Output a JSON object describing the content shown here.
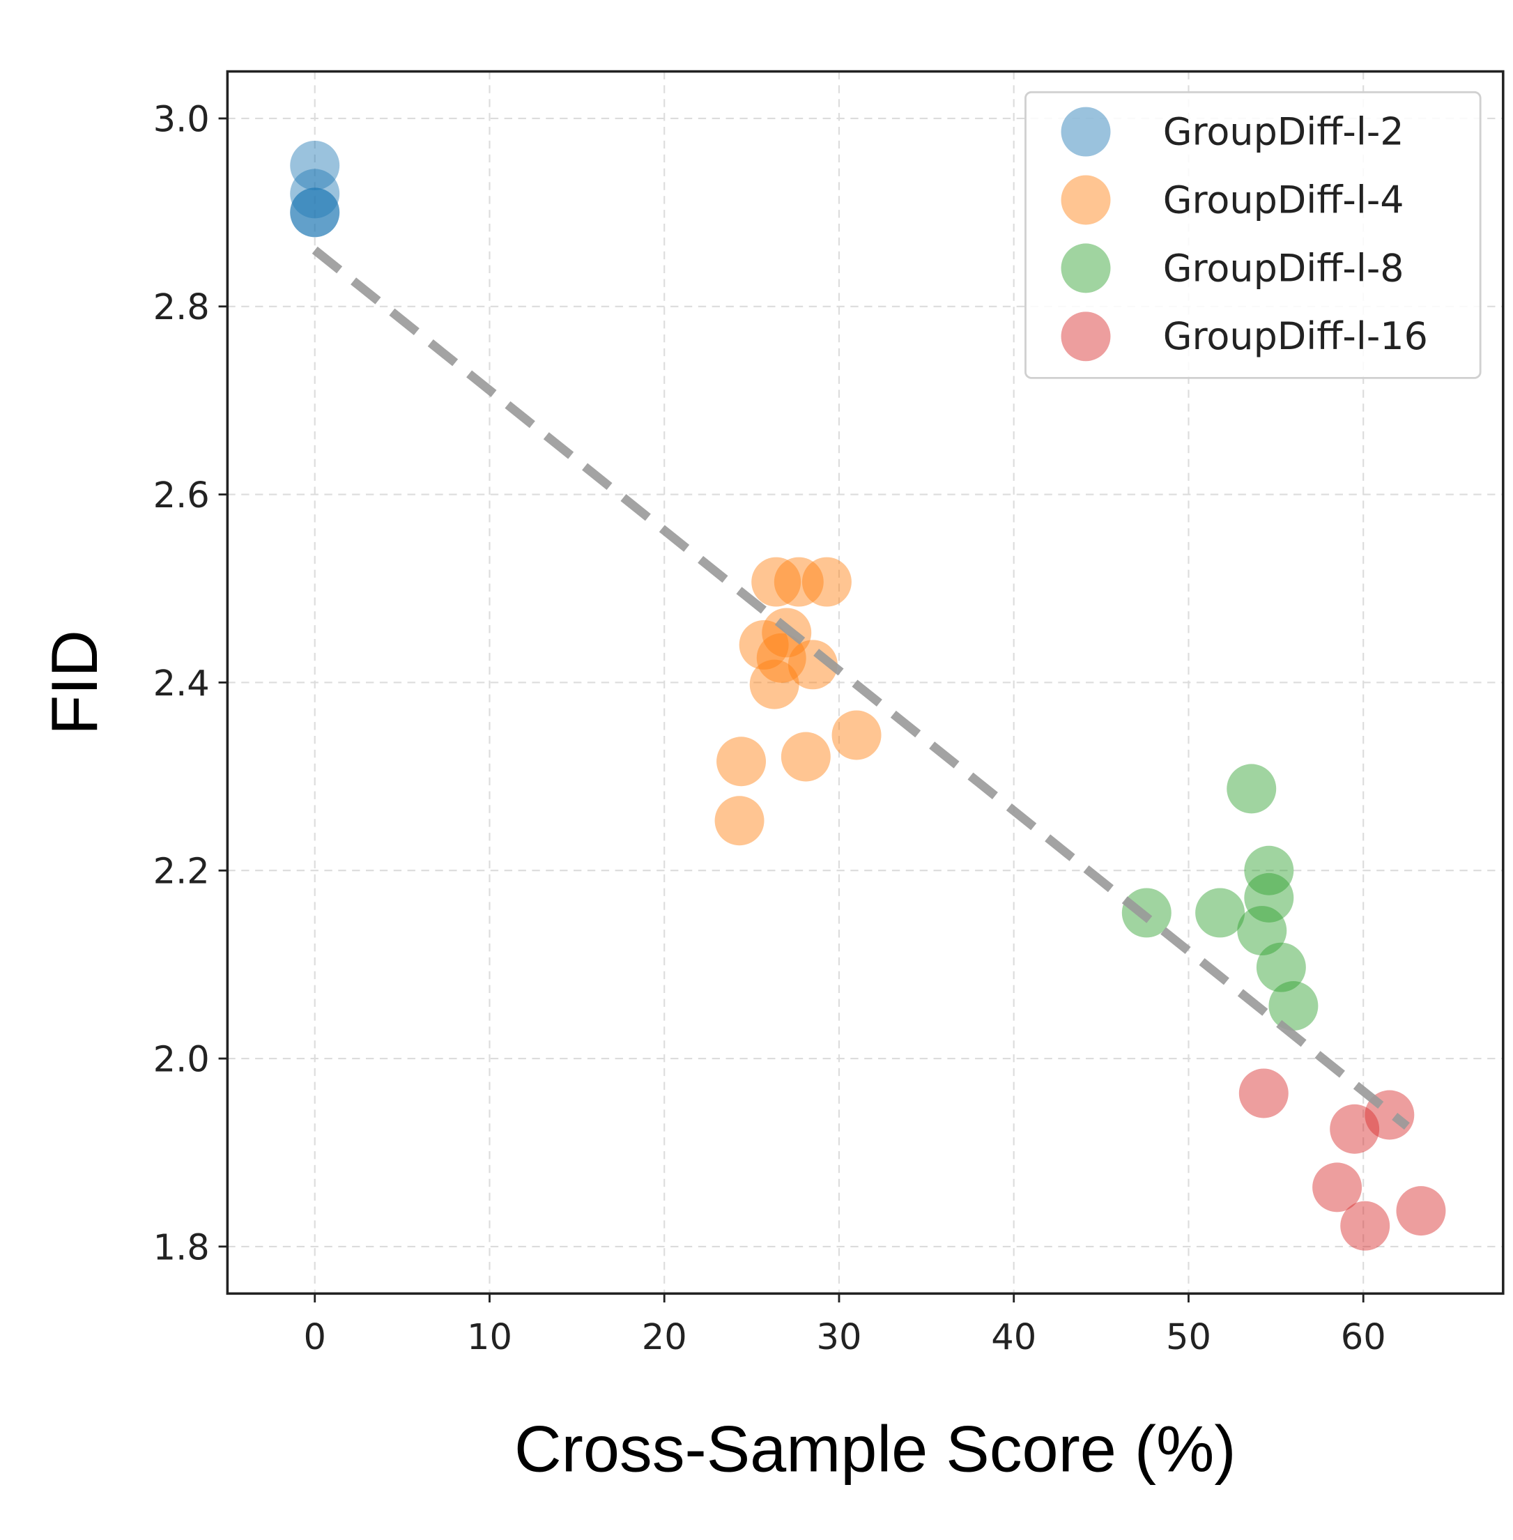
{
  "chart_data": {
    "type": "scatter",
    "x_label": "Cross-Sample Score (%)",
    "y_label": "FID",
    "xlim": [
      -5,
      68
    ],
    "ylim": [
      1.75,
      3.05
    ],
    "xticks": [
      0,
      10,
      20,
      30,
      40,
      50,
      60
    ],
    "yticks": [
      {
        "value": 1.8,
        "label": "1.8"
      },
      {
        "value": 2.0,
        "label": "2.0"
      },
      {
        "value": 2.2,
        "label": "2.2"
      },
      {
        "value": 2.4,
        "label": "2.4"
      },
      {
        "value": 2.6,
        "label": "2.6"
      },
      {
        "value": 2.8,
        "label": "2.8"
      },
      {
        "value": 3.0,
        "label": "3.0"
      }
    ],
    "grid": true,
    "legend": "upper right",
    "series": [
      {
        "name": "GroupDiff-l-2",
        "color": "#1f77b4",
        "x": [
          0,
          0,
          0,
          0
        ],
        "values": [
          2.95,
          2.92,
          2.9,
          2.9
        ]
      },
      {
        "name": "GroupDiff-l-4",
        "color": "#ff7f0e",
        "x": [
          26.4,
          27.7,
          29.3,
          25.7,
          27.0,
          26.7,
          28.5,
          26.3,
          31.0,
          24.4,
          28.1,
          24.3
        ],
        "values": [
          2.507,
          2.507,
          2.507,
          2.44,
          2.453,
          2.426,
          2.419,
          2.398,
          2.344,
          2.316,
          2.321,
          2.253
        ]
      },
      {
        "name": "GroupDiff-l-8",
        "color": "#2ca02c",
        "x": [
          53.6,
          54.6,
          54.6,
          47.6,
          51.8,
          54.2,
          55.3,
          56.0
        ],
        "values": [
          2.287,
          2.2,
          2.171,
          2.155,
          2.155,
          2.136,
          2.097,
          2.056
        ]
      },
      {
        "name": "GroupDiff-l-16",
        "color": "#d62728",
        "x": [
          54.3,
          61.5,
          59.5,
          58.5,
          60.1,
          63.3
        ],
        "values": [
          1.963,
          1.94,
          1.925,
          1.863,
          1.822,
          1.838
        ]
      }
    ],
    "trend_line": {
      "color": "#999999",
      "x": [
        0,
        62.5
      ],
      "values": [
        2.86,
        1.928
      ]
    }
  }
}
